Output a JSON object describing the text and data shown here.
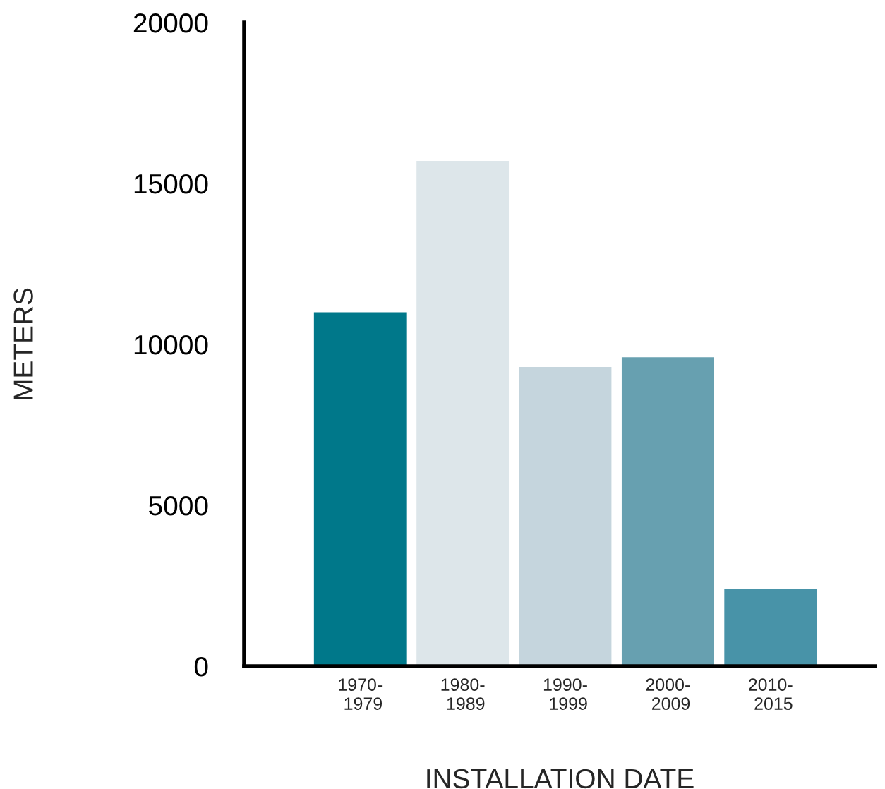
{
  "chart_data": {
    "type": "bar",
    "xlabel": "INSTALLATION DATE",
    "ylabel": "METERS",
    "categories": [
      "1970-\n1979",
      "1980-\n1989",
      "1990-\n1999",
      "2000-\n2009",
      "2010-\n2015"
    ],
    "values": [
      11000,
      15700,
      9300,
      9600,
      2400
    ],
    "colors": [
      "#00788a",
      "#dde6ea",
      "#c5d5dd",
      "#67a0b0",
      "#4893a8"
    ],
    "ylim": [
      0,
      20000
    ],
    "yticks": [
      0,
      5000,
      10000,
      15000,
      20000
    ],
    "grid": false,
    "legend": false
  }
}
